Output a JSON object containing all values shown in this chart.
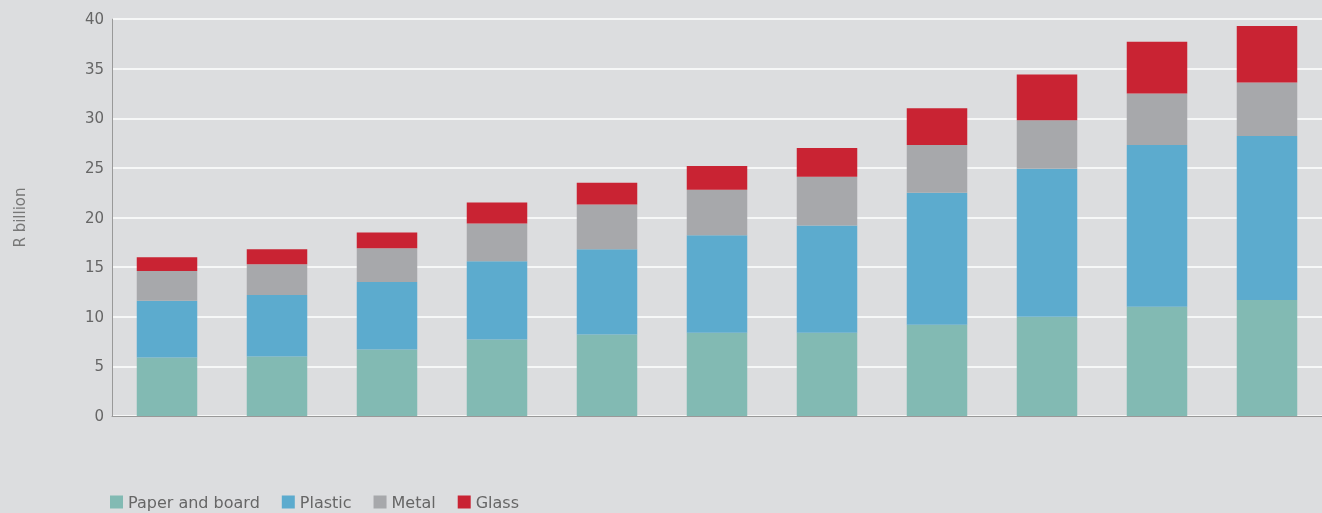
{
  "chart_data": {
    "type": "bar",
    "stacked": true,
    "ylabel": "R billion",
    "categories": [
      null,
      null,
      null,
      null,
      null,
      null,
      null,
      null,
      null,
      null,
      null
    ],
    "series": [
      {
        "name": "Paper and board",
        "color": "#82bab3",
        "values": [
          5.9,
          6.0,
          6.7,
          7.7,
          8.2,
          8.4,
          8.4,
          9.2,
          10.0,
          11.0,
          11.7
        ]
      },
      {
        "name": "Plastic",
        "color": "#5cabce",
        "values": [
          5.7,
          6.2,
          6.8,
          7.9,
          8.6,
          9.8,
          10.8,
          13.3,
          14.9,
          16.3,
          16.5
        ]
      },
      {
        "name": "Metal",
        "color": "#a7a8ab",
        "values": [
          3.0,
          3.1,
          3.4,
          3.8,
          4.5,
          4.6,
          4.9,
          4.8,
          4.9,
          5.2,
          5.4
        ]
      },
      {
        "name": "Glass",
        "color": "#c92333",
        "values": [
          1.4,
          1.5,
          1.6,
          2.1,
          2.2,
          2.4,
          2.9,
          3.7,
          4.6,
          5.2,
          5.7
        ]
      }
    ],
    "ylim": [
      0,
      40
    ],
    "yticks": [
      0,
      5,
      10,
      15,
      20,
      25,
      30,
      35,
      40
    ],
    "grid": "y",
    "legend": "bottom left"
  }
}
